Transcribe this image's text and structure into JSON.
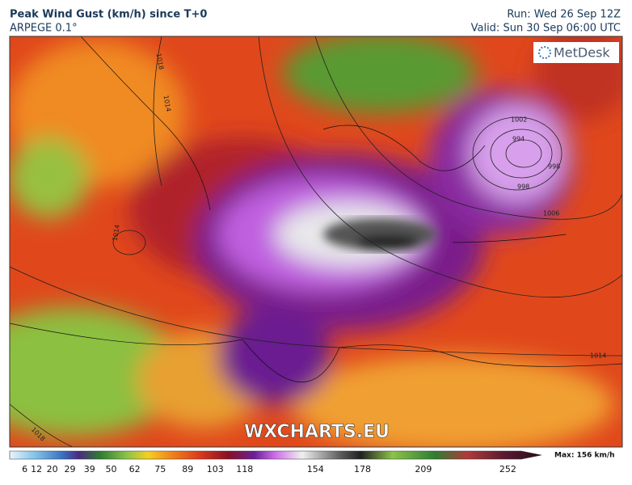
{
  "header": {
    "title": "Peak Wind Gust (km/h) since T+0",
    "model": "ARPEGE 0.1°",
    "run": "Run: Wed 26 Sep 12Z",
    "valid": "Valid: Sun 30 Sep 06:00 UTC"
  },
  "map": {
    "logo": "MetDesk",
    "watermark": "WXCHARTS.EU",
    "isobar_labels": [
      "1018",
      "1014",
      "1014",
      "1002",
      "994",
      "998",
      "998",
      "1006",
      "1014",
      "1018"
    ]
  },
  "legend": {
    "ticks": [
      6,
      12,
      20,
      29,
      39,
      50,
      62,
      75,
      89,
      103,
      118,
      154,
      178,
      209,
      252
    ],
    "max": "Max: 156 km/h"
  }
}
